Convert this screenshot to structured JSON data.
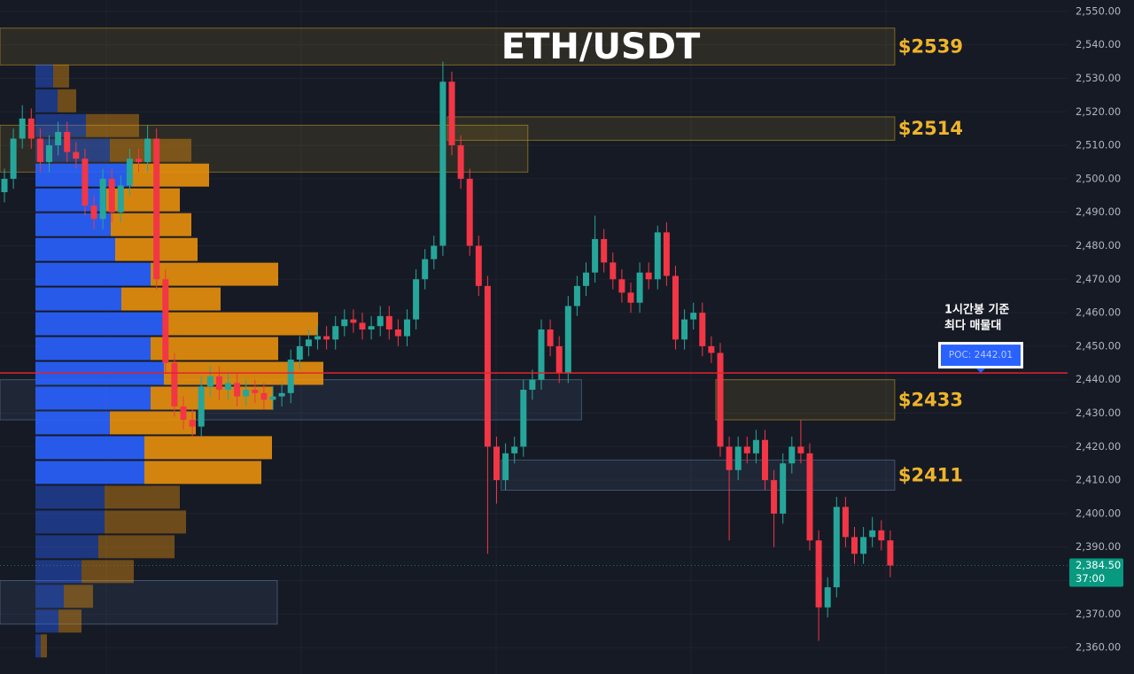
{
  "chart_data": {
    "type": "candlestick",
    "title": "ETH/USDT",
    "ylim": [
      2352.1,
      2553.4
    ],
    "yticks": [
      {
        "value": 2360,
        "label": "2,360.00"
      },
      {
        "value": 2370,
        "label": "2,370.00"
      },
      {
        "value": 2380,
        "label": "2,380.00"
      },
      {
        "value": 2390,
        "label": "2,390.00"
      },
      {
        "value": 2400,
        "label": "2,400.00"
      },
      {
        "value": 2410,
        "label": "2,410.00"
      },
      {
        "value": 2420,
        "label": "2,420.00"
      },
      {
        "value": 2430,
        "label": "2,430.00"
      },
      {
        "value": 2440,
        "label": "2,440.00"
      },
      {
        "value": 2450,
        "label": "2,450.00"
      },
      {
        "value": 2460,
        "label": "2,460.00"
      },
      {
        "value": 2470,
        "label": "2,470.00"
      },
      {
        "value": 2480,
        "label": "2,480.00"
      },
      {
        "value": 2490,
        "label": "2,490.00"
      },
      {
        "value": 2500,
        "label": "2,500.00"
      },
      {
        "value": 2510,
        "label": "2,510.00"
      },
      {
        "value": 2520,
        "label": "2,520.00"
      },
      {
        "value": 2530,
        "label": "2,530.00"
      },
      {
        "value": 2540,
        "label": "2,540.00"
      },
      {
        "value": 2550,
        "label": "2,550.00"
      }
    ],
    "grid": true,
    "up_color": "#26a69a",
    "down_color": "#f23645",
    "open": [
      2496,
      2500,
      2512,
      2518,
      2512,
      2505,
      2510,
      2514,
      2508,
      2506,
      2492,
      2488,
      2500,
      2490,
      2498,
      2506,
      2505,
      2512,
      2470,
      2445,
      2432,
      2428,
      2426,
      2438,
      2441,
      2437,
      2439,
      2435,
      2437,
      2436,
      2434,
      2435,
      2436,
      2446,
      2450,
      2452,
      2453,
      2452,
      2456,
      2458,
      2457,
      2455,
      2456,
      2459,
      2455,
      2453,
      2458,
      2470,
      2476,
      2480,
      2529,
      2510,
      2500,
      2480,
      2468,
      2420,
      2410,
      2418,
      2420,
      2437,
      2440,
      2455,
      2450,
      2442,
      2462,
      2468,
      2472,
      2482,
      2475,
      2470,
      2466,
      2463,
      2472,
      2470,
      2484,
      2471,
      2452,
      2458,
      2460,
      2450,
      2448,
      2420,
      2413,
      2420,
      2418,
      2422,
      2410,
      2400,
      2415,
      2420,
      2418,
      2392,
      2372,
      2378,
      2402,
      2393,
      2388,
      2393,
      2395,
      2392
    ],
    "high": [
      2503,
      2515,
      2522,
      2521,
      2515,
      2513,
      2517,
      2517,
      2511,
      2509,
      2495,
      2503,
      2503,
      2501,
      2509,
      2509,
      2516,
      2515,
      2473,
      2448,
      2435,
      2431,
      2441,
      2444,
      2444,
      2442,
      2442,
      2440,
      2440,
      2439,
      2438,
      2439,
      2449,
      2453,
      2455,
      2456,
      2456,
      2459,
      2461,
      2461,
      2460,
      2459,
      2462,
      2462,
      2458,
      2461,
      2473,
      2479,
      2483,
      2535,
      2532,
      2513,
      2503,
      2483,
      2471,
      2423,
      2421,
      2423,
      2440,
      2443,
      2458,
      2458,
      2453,
      2465,
      2471,
      2475,
      2489,
      2485,
      2478,
      2473,
      2469,
      2475,
      2475,
      2486,
      2487,
      2474,
      2461,
      2463,
      2463,
      2453,
      2451,
      2423,
      2423,
      2423,
      2425,
      2425,
      2413,
      2418,
      2423,
      2428,
      2421,
      2395,
      2381,
      2405,
      2405,
      2396,
      2396,
      2399,
      2398,
      2395
    ],
    "low": [
      2493,
      2497,
      2509,
      2509,
      2502,
      2502,
      2507,
      2505,
      2503,
      2489,
      2485,
      2485,
      2487,
      2487,
      2495,
      2502,
      2502,
      2467,
      2442,
      2429,
      2425,
      2423,
      2423,
      2435,
      2434,
      2434,
      2432,
      2432,
      2433,
      2431,
      2431,
      2432,
      2433,
      2443,
      2447,
      2449,
      2449,
      2449,
      2453,
      2454,
      2452,
      2452,
      2453,
      2452,
      2450,
      2450,
      2455,
      2467,
      2473,
      2477,
      2507,
      2497,
      2477,
      2465,
      2388,
      2403,
      2407,
      2415,
      2417,
      2434,
      2437,
      2447,
      2439,
      2439,
      2459,
      2465,
      2469,
      2472,
      2467,
      2463,
      2460,
      2460,
      2467,
      2467,
      2468,
      2449,
      2449,
      2455,
      2447,
      2445,
      2417,
      2392,
      2410,
      2415,
      2415,
      2407,
      2390,
      2397,
      2412,
      2415,
      2389,
      2362,
      2369,
      2375,
      2390,
      2385,
      2385,
      2390,
      2389,
      2381
    ],
    "close": [
      2500,
      2512,
      2518,
      2512,
      2505,
      2510,
      2514,
      2508,
      2506,
      2492,
      2488,
      2500,
      2490,
      2498,
      2506,
      2505,
      2512,
      2470,
      2445,
      2432,
      2428,
      2426,
      2438,
      2441,
      2437,
      2439,
      2435,
      2437,
      2436,
      2434,
      2435,
      2436,
      2446,
      2450,
      2452,
      2453,
      2452,
      2456,
      2458,
      2457,
      2455,
      2456,
      2459,
      2455,
      2453,
      2458,
      2470,
      2476,
      2480,
      2529,
      2510,
      2500,
      2480,
      2468,
      2420,
      2410,
      2418,
      2420,
      2437,
      2440,
      2455,
      2450,
      2442,
      2462,
      2468,
      2472,
      2482,
      2475,
      2470,
      2466,
      2463,
      2472,
      2470,
      2484,
      2471,
      2452,
      2458,
      2460,
      2450,
      2448,
      2420,
      2413,
      2420,
      2418,
      2422,
      2410,
      2400,
      2415,
      2420,
      2418,
      2392,
      2372,
      2378,
      2402,
      2393,
      2388,
      2393,
      2395,
      2392,
      2384.5
    ],
    "profile": {
      "bins": [
        2534.4,
        2527.0,
        2519.6,
        2512.2,
        2504.8,
        2497.4,
        2490.0,
        2482.6,
        2475.2,
        2467.8,
        2460.4,
        2453.0,
        2445.6,
        2438.2,
        2430.8,
        2423.4,
        2416.0,
        2408.6,
        2401.2,
        2393.8,
        2386.4,
        2379.0,
        2371.6,
        2364.2,
        2356.8
      ],
      "buy": [
        20,
        25,
        57,
        84,
        108,
        80,
        85,
        90,
        130,
        97,
        149,
        130,
        145,
        130,
        84,
        123,
        123,
        78,
        78,
        71,
        52,
        32,
        26,
        6
      ],
      "sell": [
        18,
        21,
        60,
        92,
        88,
        83,
        91,
        93,
        144,
        112,
        170,
        144,
        180,
        138,
        97,
        144,
        132,
        85,
        92,
        86,
        59,
        33,
        26,
        7
      ],
      "buy_color": "#2962ff",
      "sell_color": "#e8900c",
      "value_area": [
        2408.6,
        2504.8
      ]
    },
    "zones": [
      {
        "label": "$2539",
        "low": 2534,
        "high": 2545,
        "from": 0,
        "to": 99,
        "color": "#c9a227"
      },
      {
        "low": 2502,
        "high": 2516,
        "from": 0,
        "to": 58,
        "color": "#c9a227"
      },
      {
        "label": "$2514",
        "low": 2511.5,
        "high": 2518.5,
        "from": 50,
        "to": 99,
        "color": "#c9a227"
      },
      {
        "low": 2428,
        "high": 2440,
        "from": 0,
        "to": 64,
        "color": "#5b7fa6"
      },
      {
        "label": "$2433",
        "low": 2428,
        "high": 2440,
        "from": 80,
        "to": 99,
        "color": "#c9a227"
      },
      {
        "label": "$2411",
        "low": 2407,
        "high": 2416,
        "from": 56,
        "to": 99,
        "color": "#5b7fa6"
      },
      {
        "low": 2367,
        "high": 2380,
        "from": 0,
        "to": 30,
        "color": "#5b7fa6"
      }
    ],
    "poc": {
      "value": 2442.01,
      "label": "POC: 2442.01",
      "color": "#e0242f",
      "note": [
        "1시간봉 기준",
        "최다 매물대"
      ]
    },
    "last_price": {
      "value": 2384.5,
      "label": "2,384.50",
      "countdown": "37:00"
    }
  }
}
